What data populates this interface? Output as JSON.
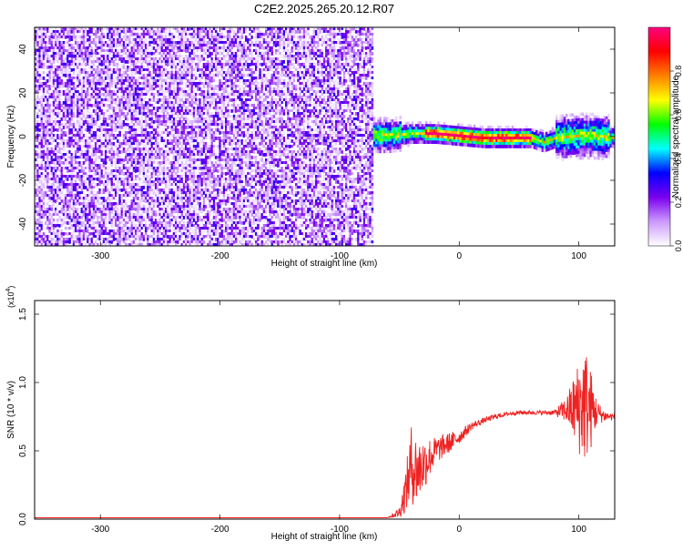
{
  "title": "C2E2.2025.265.20.12.R07",
  "chart_data": [
    {
      "type": "heatmap",
      "xlabel": "Height of straight line (km)",
      "ylabel": "Frequency (Hz)",
      "xlim": [
        -355,
        130
      ],
      "ylim": [
        -50,
        50
      ],
      "xticks": [
        -300,
        -200,
        -100,
        0,
        100
      ],
      "yticks": [
        -40,
        -20,
        0,
        20,
        40
      ],
      "noise_region_x": [
        -355,
        -72
      ],
      "signal_band": {
        "center_freq": [
          [
            -85,
            1
          ],
          [
            -60,
            1
          ],
          [
            -40,
            2
          ],
          [
            -20,
            2
          ],
          [
            0,
            1
          ],
          [
            20,
            0
          ],
          [
            40,
            0
          ],
          [
            60,
            0
          ],
          [
            70,
            -2
          ],
          [
            80,
            0
          ],
          [
            100,
            1
          ],
          [
            115,
            1
          ],
          [
            130,
            0
          ]
        ],
        "peak_amplitude_range_x": [
          -30,
          60
        ]
      },
      "colorbar": {
        "label": "Normalized spectral amplitude",
        "ticks": [
          0.0,
          0.2,
          0.4,
          0.6,
          0.8
        ],
        "range": [
          0,
          1
        ],
        "colors": [
          "#ffffff",
          "#cc99ff",
          "#7a00ee",
          "#0000ff",
          "#00ffff",
          "#00ff00",
          "#ffff00",
          "#ff8000",
          "#ff0000",
          "#ff0080"
        ]
      }
    },
    {
      "type": "line",
      "xlabel": "Height of straight line (km)",
      "ylabel": "SNR (10 * v/v)",
      "scale_label": "(x10^4)",
      "xlim": [
        -355,
        130
      ],
      "ylim": [
        0,
        1.6
      ],
      "xticks": [
        -300,
        -200,
        -100,
        0,
        100
      ],
      "yticks": [
        0.0,
        0.5,
        1.0,
        1.5
      ],
      "color": "#ee2222",
      "series": [
        {
          "x": [
            -355,
            -300,
            -200,
            -100,
            -60,
            -50,
            -45,
            -40,
            -35,
            -30,
            -25,
            -20,
            -10,
            0,
            10,
            20,
            30,
            40,
            50,
            60,
            70,
            80,
            90,
            100,
            105,
            110,
            115,
            120,
            125,
            130
          ],
          "y": [
            0.01,
            0.01,
            0.01,
            0.01,
            0.01,
            0.05,
            0.2,
            0.4,
            0.35,
            0.4,
            0.45,
            0.5,
            0.55,
            0.6,
            0.68,
            0.72,
            0.75,
            0.77,
            0.78,
            0.78,
            0.78,
            0.78,
            0.8,
            0.82,
            0.85,
            0.8,
            0.78,
            0.76,
            0.75,
            0.75
          ],
          "spread": [
            0,
            0,
            0,
            0,
            0,
            0.04,
            0.15,
            0.3,
            0.25,
            0.2,
            0.15,
            0.1,
            0.08,
            0.05,
            0.03,
            0.02,
            0.02,
            0.015,
            0.015,
            0.015,
            0.015,
            0.02,
            0.1,
            0.35,
            0.45,
            0.3,
            0.1,
            0.05,
            0.03,
            0.03
          ]
        }
      ]
    }
  ]
}
